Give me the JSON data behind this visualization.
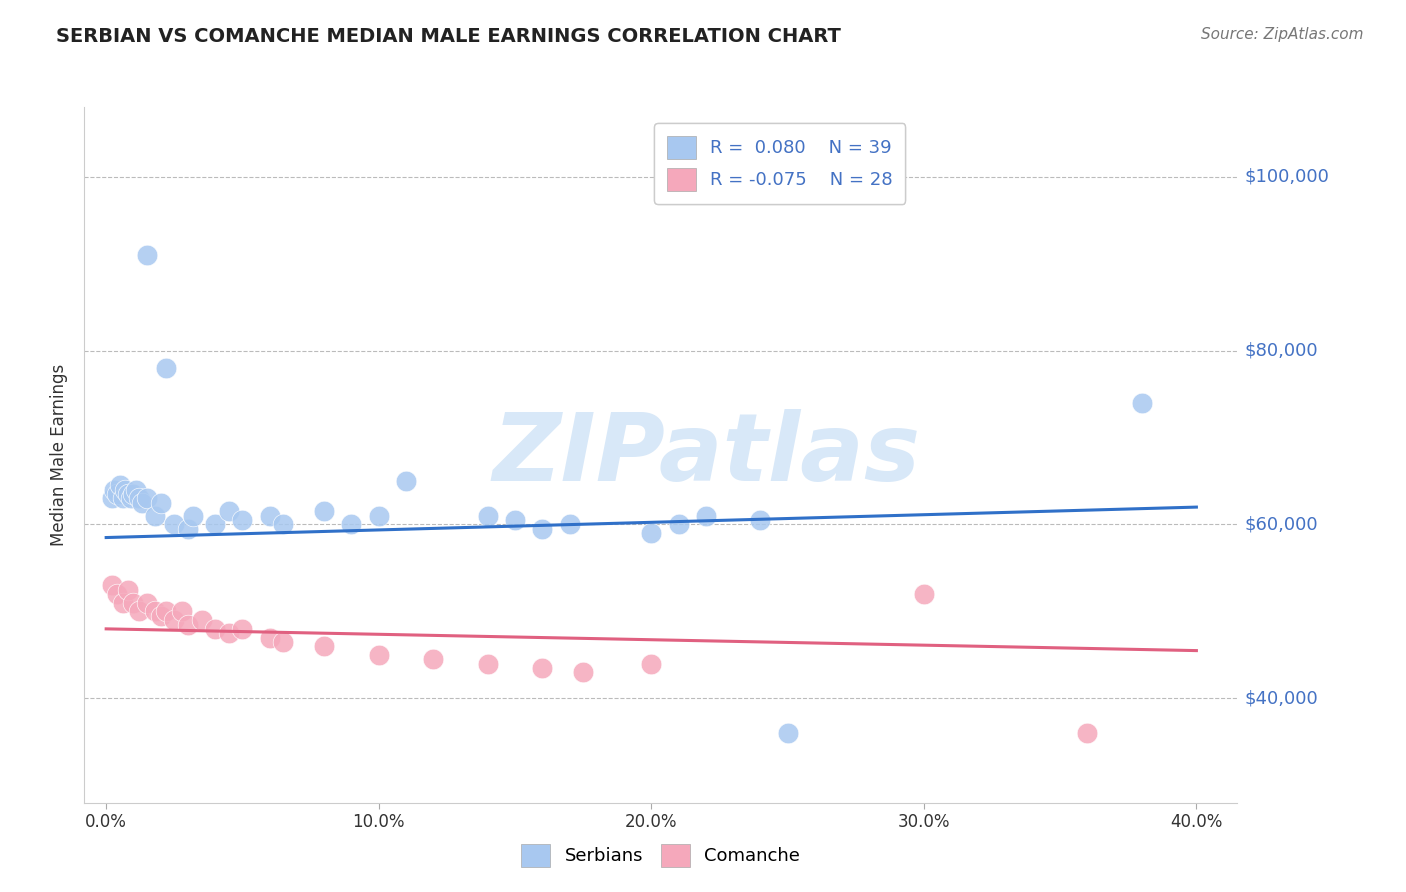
{
  "title": "SERBIAN VS COMANCHE MEDIAN MALE EARNINGS CORRELATION CHART",
  "source": "Source: ZipAtlas.com",
  "ylabel": "Median Male Earnings",
  "xlabel_ticks": [
    "0.0%",
    "10.0%",
    "20.0%",
    "30.0%",
    "40.0%"
  ],
  "xlabel_vals": [
    0.0,
    0.1,
    0.2,
    0.3,
    0.4
  ],
  "ytick_labels": [
    "$40,000",
    "$60,000",
    "$80,000",
    "$100,000"
  ],
  "ytick_vals": [
    40000,
    60000,
    80000,
    100000
  ],
  "ylim": [
    28000,
    108000
  ],
  "xlim": [
    -0.008,
    0.415
  ],
  "serbian_R": 0.08,
  "serbian_N": 39,
  "comanche_R": -0.075,
  "comanche_N": 28,
  "legend_labels": [
    "Serbians",
    "Comanche"
  ],
  "serbian_color": "#A8C8F0",
  "comanche_color": "#F5A8BB",
  "serbian_line_color": "#3070C8",
  "comanche_line_color": "#E06080",
  "watermark_color": "#D8E8F8",
  "watermark": "ZIPatlas",
  "background": "#FFFFFF",
  "serbian_points": [
    [
      0.002,
      63000
    ],
    [
      0.003,
      64000
    ],
    [
      0.004,
      63500
    ],
    [
      0.005,
      64500
    ],
    [
      0.006,
      63000
    ],
    [
      0.007,
      64000
    ],
    [
      0.008,
      63500
    ],
    [
      0.009,
      63000
    ],
    [
      0.01,
      63500
    ],
    [
      0.011,
      64000
    ],
    [
      0.012,
      63000
    ],
    [
      0.013,
      62500
    ],
    [
      0.015,
      63000
    ],
    [
      0.018,
      61000
    ],
    [
      0.02,
      62500
    ],
    [
      0.025,
      60000
    ],
    [
      0.03,
      59500
    ],
    [
      0.032,
      61000
    ],
    [
      0.04,
      60000
    ],
    [
      0.045,
      61500
    ],
    [
      0.05,
      60500
    ],
    [
      0.06,
      61000
    ],
    [
      0.065,
      60000
    ],
    [
      0.08,
      61500
    ],
    [
      0.09,
      60000
    ],
    [
      0.1,
      61000
    ],
    [
      0.11,
      65000
    ],
    [
      0.14,
      61000
    ],
    [
      0.15,
      60500
    ],
    [
      0.16,
      59500
    ],
    [
      0.17,
      60000
    ],
    [
      0.2,
      59000
    ],
    [
      0.21,
      60000
    ],
    [
      0.22,
      61000
    ],
    [
      0.24,
      60500
    ],
    [
      0.25,
      36000
    ],
    [
      0.015,
      91000
    ],
    [
      0.022,
      78000
    ],
    [
      0.38,
      74000
    ]
  ],
  "comanche_points": [
    [
      0.002,
      53000
    ],
    [
      0.004,
      52000
    ],
    [
      0.006,
      51000
    ],
    [
      0.008,
      52500
    ],
    [
      0.01,
      51000
    ],
    [
      0.012,
      50000
    ],
    [
      0.015,
      51000
    ],
    [
      0.018,
      50000
    ],
    [
      0.02,
      49500
    ],
    [
      0.022,
      50000
    ],
    [
      0.025,
      49000
    ],
    [
      0.028,
      50000
    ],
    [
      0.03,
      48500
    ],
    [
      0.035,
      49000
    ],
    [
      0.04,
      48000
    ],
    [
      0.045,
      47500
    ],
    [
      0.05,
      48000
    ],
    [
      0.06,
      47000
    ],
    [
      0.065,
      46500
    ],
    [
      0.08,
      46000
    ],
    [
      0.1,
      45000
    ],
    [
      0.12,
      44500
    ],
    [
      0.14,
      44000
    ],
    [
      0.16,
      43500
    ],
    [
      0.175,
      43000
    ],
    [
      0.2,
      44000
    ],
    [
      0.3,
      52000
    ],
    [
      0.36,
      36000
    ]
  ],
  "serbian_line": [
    [
      0.0,
      58500
    ],
    [
      0.4,
      62000
    ]
  ],
  "comanche_line": [
    [
      0.0,
      48000
    ],
    [
      0.4,
      45500
    ]
  ]
}
